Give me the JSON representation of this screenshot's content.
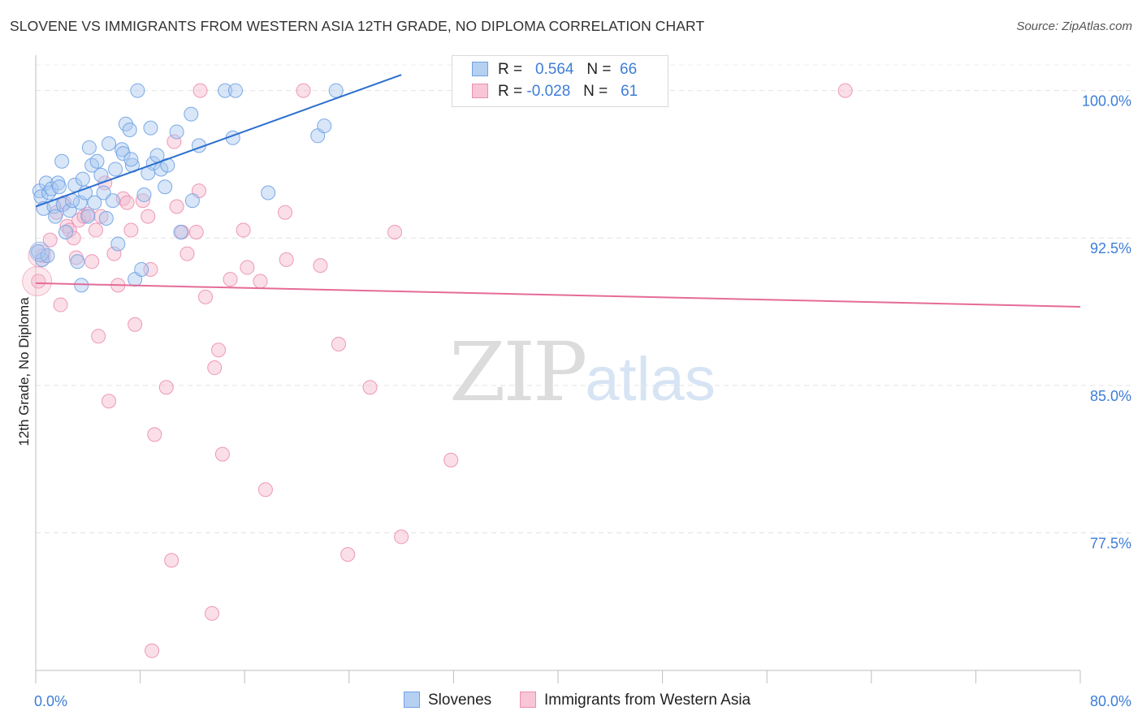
{
  "header": {
    "title": "SLOVENE VS IMMIGRANTS FROM WESTERN ASIA 12TH GRADE, NO DIPLOMA CORRELATION CHART",
    "source": "Source: ZipAtlas.com"
  },
  "watermark": {
    "zip": "ZIP",
    "atlas": "atlas"
  },
  "legend": {
    "rows": [
      {
        "r_label": "R =",
        "r_value": "0.564",
        "n_label": "N =",
        "n_value": "66"
      },
      {
        "r_label": "R =",
        "r_value": "-0.028",
        "n_label": "N =",
        "n_value": "61"
      }
    ]
  },
  "chart_data": {
    "type": "scatter",
    "title": "SLOVENE VS IMMIGRANTS FROM WESTERN ASIA 12TH GRADE, NO DIPLOMA CORRELATION CHART",
    "xlabel": "",
    "ylabel": "12th Grade, No Diploma",
    "xlim": [
      0,
      80
    ],
    "ylim": [
      70.5,
      101.8
    ],
    "x_tick_labels": [
      "0.0%",
      "80.0%"
    ],
    "y_ticks": [
      77.5,
      85.0,
      92.5,
      100.0
    ],
    "y_tick_labels": [
      "77.5%",
      "85.0%",
      "92.5%",
      "100.0%"
    ],
    "grid": true,
    "colors": {
      "blue_fill": "#a9c8f0",
      "blue_line": "#2b6fcf",
      "pink_fill": "#f5b9cc",
      "pink_line": "#e56b98",
      "tick_text": "#3d7dd8"
    },
    "series": [
      {
        "name": "Slovenes",
        "color": "#6fa2e4",
        "trend": {
          "x": [
            0,
            28
          ],
          "y": [
            94.1,
            100.8
          ]
        },
        "points": [
          [
            0.3,
            94.9
          ],
          [
            0.4,
            94.6
          ],
          [
            0.6,
            94.0
          ],
          [
            0.8,
            95.3
          ],
          [
            1.0,
            94.8
          ],
          [
            1.2,
            95.0
          ],
          [
            1.4,
            94.1
          ],
          [
            1.5,
            93.6
          ],
          [
            1.7,
            95.3
          ],
          [
            2.0,
            96.4
          ],
          [
            2.1,
            94.2
          ],
          [
            2.3,
            92.8
          ],
          [
            2.6,
            93.9
          ],
          [
            3.0,
            95.2
          ],
          [
            3.2,
            91.3
          ],
          [
            3.4,
            94.3
          ],
          [
            3.5,
            90.1
          ],
          [
            3.6,
            95.5
          ],
          [
            3.8,
            94.8
          ],
          [
            4.1,
            97.1
          ],
          [
            4.3,
            96.2
          ],
          [
            4.5,
            94.3
          ],
          [
            4.7,
            96.4
          ],
          [
            5.0,
            95.7
          ],
          [
            5.2,
            94.8
          ],
          [
            5.4,
            93.5
          ],
          [
            5.6,
            97.3
          ],
          [
            5.9,
            94.4
          ],
          [
            6.1,
            96.0
          ],
          [
            6.3,
            92.2
          ],
          [
            6.6,
            97.0
          ],
          [
            6.9,
            98.3
          ],
          [
            7.2,
            98.0
          ],
          [
            7.4,
            96.2
          ],
          [
            7.6,
            90.4
          ],
          [
            7.8,
            100.0
          ],
          [
            8.1,
            90.9
          ],
          [
            8.3,
            94.7
          ],
          [
            8.6,
            95.8
          ],
          [
            8.8,
            98.1
          ],
          [
            9.0,
            96.3
          ],
          [
            9.3,
            96.7
          ],
          [
            9.6,
            96.0
          ],
          [
            9.9,
            95.1
          ],
          [
            10.1,
            96.2
          ],
          [
            10.8,
            97.9
          ],
          [
            11.1,
            92.8
          ],
          [
            11.9,
            98.8
          ],
          [
            12.0,
            94.4
          ],
          [
            12.5,
            97.2
          ],
          [
            14.5,
            100.0
          ],
          [
            15.1,
            97.6
          ],
          [
            15.3,
            100.0
          ],
          [
            17.8,
            94.8
          ],
          [
            21.6,
            97.7
          ],
          [
            22.1,
            98.2
          ],
          [
            23.0,
            100.0
          ],
          [
            33.0,
            100.0
          ],
          [
            0.5,
            91.4
          ],
          [
            1.8,
            95.1
          ],
          [
            2.8,
            94.4
          ],
          [
            4.0,
            93.6
          ],
          [
            6.7,
            96.8
          ],
          [
            7.3,
            96.5
          ],
          [
            0.2,
            91.8
          ],
          [
            0.9,
            91.6
          ]
        ]
      },
      {
        "name": "Immigrants from Western Asia",
        "color": "#ec8eaf",
        "trend": {
          "x": [
            0,
            80
          ],
          "y": [
            90.2,
            89.0
          ]
        },
        "points": [
          [
            0.2,
            90.3
          ],
          [
            0.5,
            91.6
          ],
          [
            1.1,
            92.4
          ],
          [
            1.6,
            93.8
          ],
          [
            1.9,
            89.1
          ],
          [
            2.2,
            94.3
          ],
          [
            2.4,
            93.1
          ],
          [
            2.6,
            92.9
          ],
          [
            2.9,
            92.5
          ],
          [
            3.1,
            91.5
          ],
          [
            3.3,
            93.4
          ],
          [
            3.7,
            93.6
          ],
          [
            4.0,
            93.7
          ],
          [
            4.3,
            91.3
          ],
          [
            4.6,
            92.9
          ],
          [
            4.8,
            87.5
          ],
          [
            5.0,
            93.6
          ],
          [
            5.3,
            95.3
          ],
          [
            5.6,
            84.2
          ],
          [
            6.0,
            91.7
          ],
          [
            6.3,
            90.1
          ],
          [
            6.7,
            94.5
          ],
          [
            7.0,
            94.3
          ],
          [
            7.3,
            92.9
          ],
          [
            7.6,
            88.1
          ],
          [
            8.2,
            94.4
          ],
          [
            8.6,
            93.6
          ],
          [
            8.8,
            90.9
          ],
          [
            9.1,
            82.5
          ],
          [
            10.0,
            84.9
          ],
          [
            10.4,
            76.1
          ],
          [
            10.6,
            97.4
          ],
          [
            10.8,
            94.1
          ],
          [
            11.2,
            92.8
          ],
          [
            11.6,
            91.7
          ],
          [
            12.3,
            92.8
          ],
          [
            12.5,
            94.9
          ],
          [
            13.0,
            89.5
          ],
          [
            13.5,
            73.4
          ],
          [
            13.7,
            85.9
          ],
          [
            14.0,
            86.8
          ],
          [
            14.3,
            81.5
          ],
          [
            14.9,
            90.4
          ],
          [
            15.9,
            92.9
          ],
          [
            16.2,
            91.0
          ],
          [
            17.2,
            90.3
          ],
          [
            17.6,
            79.7
          ],
          [
            19.1,
            93.8
          ],
          [
            19.2,
            91.4
          ],
          [
            20.5,
            100.0
          ],
          [
            21.8,
            91.1
          ],
          [
            23.2,
            87.1
          ],
          [
            23.9,
            76.4
          ],
          [
            25.6,
            84.9
          ],
          [
            27.5,
            92.8
          ],
          [
            28.0,
            77.3
          ],
          [
            31.8,
            81.2
          ],
          [
            34.3,
            100.0
          ],
          [
            62.0,
            100.0
          ],
          [
            8.9,
            71.5
          ],
          [
            12.6,
            100.0
          ]
        ]
      }
    ]
  },
  "bottom_legend": {
    "items": [
      {
        "label": "Slovenes"
      },
      {
        "label": "Immigrants from Western Asia"
      }
    ]
  }
}
